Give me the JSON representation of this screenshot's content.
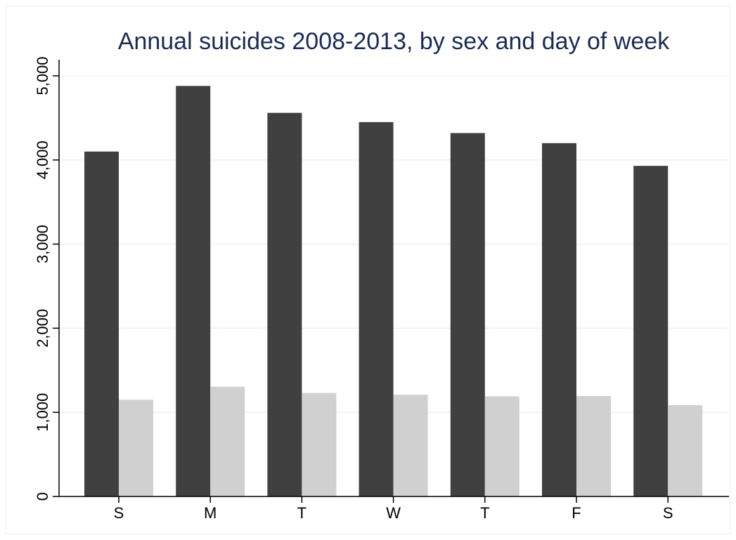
{
  "chart_data": {
    "type": "bar",
    "title": "Annual suicides 2008-2013, by sex and day of week",
    "xlabel": "",
    "ylabel": "",
    "categories": [
      "S",
      "M",
      "T",
      "W",
      "T",
      "F",
      "S"
    ],
    "series": [
      {
        "values": [
          4100,
          4880,
          4560,
          4450,
          4320,
          4200,
          3930
        ],
        "color": "#404040"
      },
      {
        "values": [
          1150,
          1305,
          1230,
          1210,
          1190,
          1195,
          1085
        ],
        "color": "#d0d0d0"
      }
    ],
    "ylim": [
      0,
      5000
    ],
    "yticks": [
      0,
      1000,
      2000,
      3000,
      4000,
      5000
    ],
    "ytick_labels": [
      "0",
      "1,000",
      "2,000",
      "3,000",
      "4,000",
      "5,000"
    ],
    "grid": true,
    "colors": {
      "title": "#1a2c55",
      "grid": "#eaf2f3",
      "axis": "#000000"
    }
  }
}
